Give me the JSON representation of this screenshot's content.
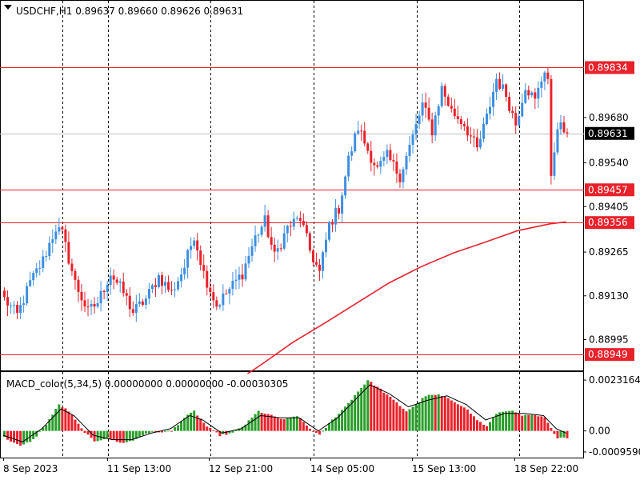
{
  "chart_data": {
    "type": "candlestick",
    "symbol_header": "USDCHF,H1",
    "ohlc_header": [
      "0.89637",
      "0.89660",
      "0.89626",
      "0.89631"
    ],
    "price_axis": {
      "ylim": [
        0.889,
        0.9004
      ],
      "tick_labels": [
        "0.89680",
        "0.89540",
        "0.89405",
        "0.89265",
        "0.89130",
        "0.88995"
      ],
      "tick_values": [
        0.8968,
        0.8954,
        0.89405,
        0.89265,
        0.8913,
        0.88995
      ]
    },
    "time_axis": {
      "labels": [
        "8 Sep 2023",
        "11 Sep 13:00",
        "12 Sep 21:00",
        "14 Sep 05:00",
        "15 Sep 13:00",
        "18 Sep 22:00"
      ],
      "label_bars": [
        0,
        32,
        64,
        96,
        128,
        160
      ],
      "bar_count": 176
    },
    "horizontal_lines": [
      {
        "label": "0.89834",
        "value": 0.89834,
        "color": "#e8222b"
      },
      {
        "label": "0.89457",
        "value": 0.89457,
        "color": "#e8222b"
      },
      {
        "label": "0.89356",
        "value": 0.89356,
        "color": "#e8222b"
      },
      {
        "label": "0.88949",
        "value": 0.88949,
        "color": "#e8222b"
      }
    ],
    "current_price": {
      "label": "0.89631",
      "value": 0.89631
    },
    "moving_average": {
      "color": "#e8222b",
      "points": [
        [
          76,
          0.8889
        ],
        [
          80,
          0.88916
        ],
        [
          90,
          0.88986
        ],
        [
          100,
          0.89046
        ],
        [
          110,
          0.89108
        ],
        [
          120,
          0.8917
        ],
        [
          130,
          0.8922
        ],
        [
          140,
          0.89262
        ],
        [
          150,
          0.89296
        ],
        [
          160,
          0.89331
        ],
        [
          170,
          0.89352
        ],
        [
          175,
          0.89358
        ]
      ]
    },
    "candle_keypoints": [
      [
        0,
        0.8912
      ],
      [
        4,
        0.8907
      ],
      [
        8,
        0.8917
      ],
      [
        12,
        0.8924
      ],
      [
        16,
        0.8934
      ],
      [
        18,
        0.8932
      ],
      [
        22,
        0.8917
      ],
      [
        26,
        0.8908
      ],
      [
        29,
        0.8911
      ],
      [
        33,
        0.892
      ],
      [
        37,
        0.8914
      ],
      [
        40,
        0.8908
      ],
      [
        44,
        0.8912
      ],
      [
        48,
        0.8919
      ],
      [
        52,
        0.8914
      ],
      [
        56,
        0.8922
      ],
      [
        59,
        0.8932
      ],
      [
        62,
        0.892
      ],
      [
        66,
        0.891
      ],
      [
        70,
        0.8915
      ],
      [
        74,
        0.892
      ],
      [
        78,
        0.8931
      ],
      [
        81,
        0.8936
      ],
      [
        84,
        0.8925
      ],
      [
        88,
        0.8934
      ],
      [
        92,
        0.8937
      ],
      [
        95,
        0.8927
      ],
      [
        98,
        0.892
      ],
      [
        101,
        0.8935
      ],
      [
        104,
        0.894
      ],
      [
        107,
        0.8955
      ],
      [
        110,
        0.8965
      ],
      [
        113,
        0.8958
      ],
      [
        116,
        0.8952
      ],
      [
        119,
        0.8956
      ],
      [
        123,
        0.895
      ],
      [
        127,
        0.8962
      ],
      [
        130,
        0.8972
      ],
      [
        133,
        0.8964
      ],
      [
        136,
        0.8977
      ],
      [
        139,
        0.897
      ],
      [
        143,
        0.8966
      ],
      [
        147,
        0.8958
      ],
      [
        150,
        0.8968
      ],
      [
        153,
        0.898
      ],
      [
        156,
        0.8975
      ],
      [
        159,
        0.8966
      ],
      [
        162,
        0.8978
      ],
      [
        165,
        0.8973
      ],
      [
        168,
        0.8983
      ],
      [
        169,
        0.898
      ],
      [
        170,
        0.895
      ],
      [
        172,
        0.8966
      ],
      [
        175,
        0.8963
      ]
    ],
    "up_color": "#3d8fe0",
    "down_color": "#e8222b",
    "macd": {
      "label": "MACD_color(5,34,5) 0.00000000 0.00000000 -0.00030305",
      "ylim": [
        -0.00118,
        0.00265
      ],
      "tick_labels": [
        "0.0023164",
        "0.00",
        "-0.0009590"
      ],
      "tick_values": [
        0.0023164,
        0.0,
        -0.000959
      ],
      "pos_color": "#2a9d2a",
      "neg_color": "#e8222b",
      "keypoints": [
        [
          0,
          -0.0003
        ],
        [
          5,
          -0.0007
        ],
        [
          9,
          -0.0004
        ],
        [
          13,
          0.0003
        ],
        [
          17,
          0.0012
        ],
        [
          20,
          0.0009
        ],
        [
          24,
          0.0001
        ],
        [
          28,
          -0.0005
        ],
        [
          32,
          -0.0003
        ],
        [
          36,
          -0.00055
        ],
        [
          40,
          -0.00045
        ],
        [
          44,
          -0.0001
        ],
        [
          48,
          -5e-05
        ],
        [
          52,
          0.0
        ],
        [
          56,
          0.0006
        ],
        [
          59,
          0.0009
        ],
        [
          63,
          0.0002
        ],
        [
          67,
          -0.0002
        ],
        [
          71,
          -0.0001
        ],
        [
          75,
          0.0003
        ],
        [
          79,
          0.0009
        ],
        [
          83,
          0.0007
        ],
        [
          87,
          0.0005
        ],
        [
          91,
          0.0007
        ],
        [
          95,
          0.0001
        ],
        [
          98,
          -0.0002
        ],
        [
          102,
          0.0005
        ],
        [
          106,
          0.0011
        ],
        [
          110,
          0.0018
        ],
        [
          113,
          0.00231
        ],
        [
          117,
          0.0019
        ],
        [
          121,
          0.0014
        ],
        [
          125,
          0.0009
        ],
        [
          128,
          0.0012
        ],
        [
          131,
          0.0016
        ],
        [
          135,
          0.00165
        ],
        [
          139,
          0.0014
        ],
        [
          143,
          0.0011
        ],
        [
          147,
          0.0005
        ],
        [
          150,
          0.0002
        ],
        [
          153,
          0.0008
        ],
        [
          157,
          0.00095
        ],
        [
          161,
          0.0007
        ],
        [
          165,
          0.0007
        ],
        [
          168,
          0.0006
        ],
        [
          170,
          0.0001
        ],
        [
          172,
          -0.0003
        ],
        [
          175,
          -0.0003
        ]
      ],
      "signal_keypoints": [
        [
          0,
          -0.0002
        ],
        [
          6,
          -0.0005
        ],
        [
          12,
          0.0001
        ],
        [
          18,
          0.001
        ],
        [
          22,
          0.0007
        ],
        [
          28,
          -0.0002
        ],
        [
          34,
          -0.0004
        ],
        [
          40,
          -0.0004
        ],
        [
          46,
          -0.0001
        ],
        [
          52,
          0.0001
        ],
        [
          58,
          0.0007
        ],
        [
          62,
          0.0005
        ],
        [
          68,
          -0.0001
        ],
        [
          74,
          0.0001
        ],
        [
          80,
          0.0007
        ],
        [
          86,
          0.0006
        ],
        [
          92,
          0.0006
        ],
        [
          98,
          0.0
        ],
        [
          104,
          0.0006
        ],
        [
          110,
          0.0015
        ],
        [
          114,
          0.0021
        ],
        [
          120,
          0.0017
        ],
        [
          126,
          0.0011
        ],
        [
          132,
          0.0014
        ],
        [
          138,
          0.0016
        ],
        [
          144,
          0.0012
        ],
        [
          150,
          0.0005
        ],
        [
          156,
          0.0008
        ],
        [
          162,
          0.0008
        ],
        [
          168,
          0.0007
        ],
        [
          172,
          0.0001
        ],
        [
          175,
          -0.0001
        ]
      ]
    }
  }
}
